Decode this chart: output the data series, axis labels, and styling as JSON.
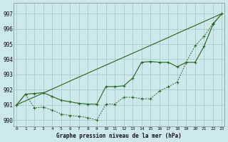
{
  "title": "Graphe pression niveau de la mer (hPa)",
  "background_color": "#cce8e8",
  "grid_color": "#aacccc",
  "line_color": "#2d6a2d",
  "xlim": [
    -0.3,
    23.3
  ],
  "ylim": [
    989.6,
    997.7
  ],
  "yticks": [
    990,
    991,
    992,
    993,
    994,
    995,
    996,
    997
  ],
  "xticks": [
    0,
    1,
    2,
    3,
    4,
    5,
    6,
    7,
    8,
    9,
    10,
    11,
    12,
    13,
    14,
    15,
    16,
    17,
    18,
    19,
    20,
    21,
    22,
    23
  ],
  "line_straight": [
    991.0,
    991.26,
    991.52,
    991.78,
    992.04,
    992.3,
    992.57,
    992.83,
    993.09,
    993.35,
    993.61,
    993.87,
    994.13,
    994.39,
    994.65,
    994.91,
    995.17,
    995.43,
    995.7,
    995.96,
    996.22,
    996.48,
    996.74,
    997.0
  ],
  "line_dip": [
    991.0,
    991.7,
    990.8,
    990.85,
    990.65,
    990.4,
    990.3,
    990.25,
    990.15,
    990.0,
    991.05,
    991.05,
    991.5,
    991.5,
    991.4,
    991.4,
    991.9,
    992.2,
    992.5,
    993.8,
    994.9,
    995.5,
    996.35,
    997.0
  ],
  "line_curve": [
    991.0,
    991.7,
    991.75,
    991.8,
    991.55,
    991.3,
    991.2,
    991.1,
    991.05,
    991.05,
    992.2,
    992.2,
    992.25,
    992.75,
    993.8,
    993.85,
    993.8,
    993.8,
    993.5,
    993.8,
    993.8,
    994.85,
    996.3,
    997.0
  ]
}
